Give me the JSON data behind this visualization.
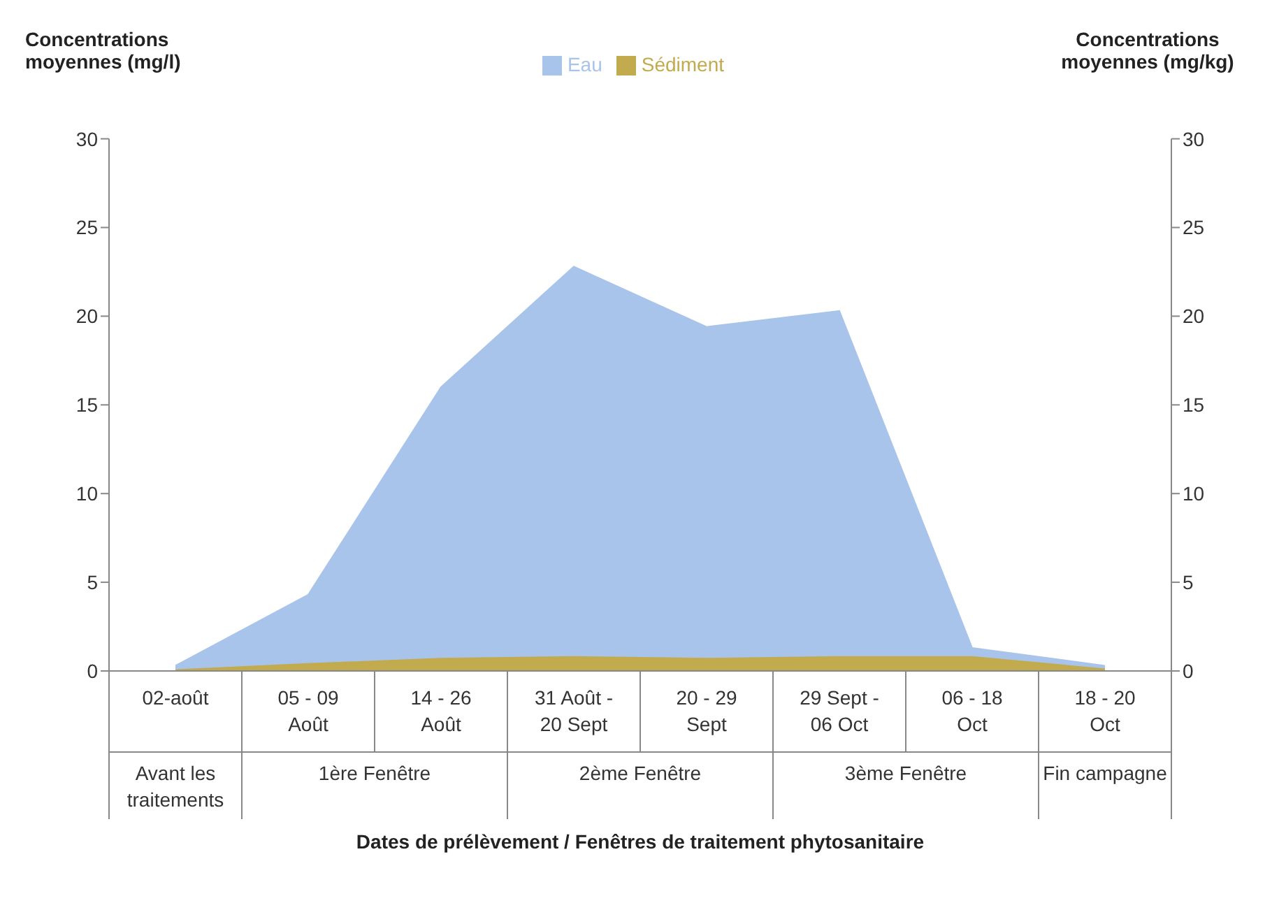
{
  "chart_data": {
    "type": "area",
    "ylabel": "Concentrations moyennes (mg/l)",
    "y2label": "Concentrations moyennes (mg/kg)",
    "xlabel": "Dates de prélèvement / Fenêtres de traitement phytosanitaire",
    "categories": [
      "02-août",
      "05 - 09\nAoût",
      "14 - 26\nAoût",
      "31 Août -\n20 Sept",
      "20 - 29\nSept",
      "29 Sept -\n06 Oct",
      "06 - 18\nOct",
      "18 - 20\nOct"
    ],
    "series": [
      {
        "name": "Eau",
        "color": "#a9c4eb",
        "values": [
          0.3,
          4.3,
          16,
          22.8,
          19.4,
          20.3,
          1.3,
          0.3
        ]
      },
      {
        "name": "Sédiment",
        "color": "#c2ab4e",
        "axis": "y2",
        "values": [
          0.05,
          0.4,
          0.7,
          0.8,
          0.7,
          0.8,
          0.8,
          0.1
        ]
      }
    ],
    "ylim": [
      0,
      30
    ],
    "yticks": [
      0,
      5,
      10,
      15,
      20,
      25,
      30
    ],
    "y2lim": [
      0,
      30
    ],
    "y2ticks": [
      0,
      5,
      10,
      15,
      20,
      25,
      30
    ],
    "annotations": [
      "Avant les traitements",
      "1ère Fenêtre",
      "2ème Fenêtre",
      "3ème Fenêtre",
      "Fin campagne"
    ],
    "legend": "top",
    "grid": false
  }
}
